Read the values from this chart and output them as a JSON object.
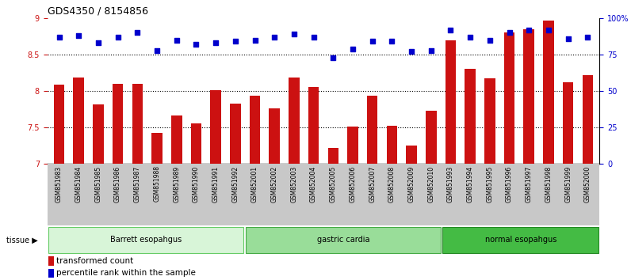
{
  "title": "GDS4350 / 8154856",
  "samples": [
    "GSM851983",
    "GSM851984",
    "GSM851985",
    "GSM851986",
    "GSM851987",
    "GSM851988",
    "GSM851989",
    "GSM851990",
    "GSM851991",
    "GSM851992",
    "GSM852001",
    "GSM852002",
    "GSM852003",
    "GSM852004",
    "GSM852005",
    "GSM852006",
    "GSM852007",
    "GSM852008",
    "GSM852009",
    "GSM852010",
    "GSM851993",
    "GSM851994",
    "GSM851995",
    "GSM851996",
    "GSM851997",
    "GSM851998",
    "GSM851999",
    "GSM852000"
  ],
  "bar_values": [
    8.09,
    8.19,
    7.82,
    8.1,
    8.1,
    7.43,
    7.66,
    7.56,
    8.01,
    7.83,
    7.93,
    7.76,
    8.19,
    8.06,
    7.22,
    7.51,
    7.93,
    7.52,
    7.25,
    7.73,
    8.7,
    8.3,
    8.17,
    8.8,
    8.85,
    8.97,
    8.12,
    8.22
  ],
  "dot_values": [
    87,
    88,
    83,
    87,
    90,
    78,
    85,
    82,
    83,
    84,
    85,
    87,
    89,
    87,
    73,
    79,
    84,
    84,
    77,
    78,
    92,
    87,
    85,
    90,
    92,
    92,
    86,
    87
  ],
  "groups": [
    {
      "label": "Barrett esopahgus",
      "start": 0,
      "end": 10,
      "color": "#d8f5d8",
      "edge": "#66cc66"
    },
    {
      "label": "gastric cardia",
      "start": 10,
      "end": 20,
      "color": "#99dd99",
      "edge": "#44aa44"
    },
    {
      "label": "normal esopahgus",
      "start": 20,
      "end": 28,
      "color": "#44bb44",
      "edge": "#228822"
    }
  ],
  "bar_color": "#cc1111",
  "dot_color": "#0000cc",
  "ylim_left": [
    7,
    9
  ],
  "ylim_right": [
    0,
    100
  ],
  "yticks_left": [
    7,
    7.5,
    8,
    8.5,
    9
  ],
  "ytick_labels_left": [
    "7",
    "7.5",
    "8",
    "8.5",
    "9"
  ],
  "yticks_right": [
    0,
    25,
    50,
    75,
    100
  ],
  "ytick_labels_right": [
    "0",
    "25",
    "50",
    "75",
    "100%"
  ],
  "grid_values": [
    7.5,
    8.0,
    8.5
  ],
  "bar_width": 0.55,
  "xlim": [
    -0.6,
    27.6
  ],
  "tick_fontsize": 7,
  "sample_fontsize": 5.5,
  "group_fontsize": 7,
  "legend_fontsize": 7.5,
  "title_fontsize": 9,
  "xtick_bg_color": "#c8c8c8",
  "legend_bar_color": "#cc1111",
  "legend_dot_color": "#0000cc",
  "tissue_label": "tissue ▶",
  "legend_label1": "transformed count",
  "legend_label2": "percentile rank within the sample"
}
